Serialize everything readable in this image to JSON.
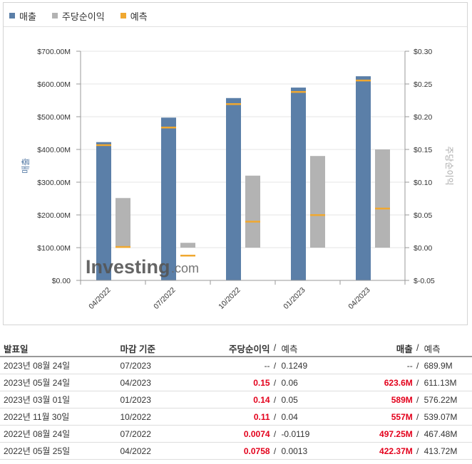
{
  "legend": [
    {
      "label": "매출",
      "color": "#5b7fa8"
    },
    {
      "label": "주당순이익",
      "color": "#b3b3b3"
    },
    {
      "label": "예측",
      "color": "#f0a830"
    }
  ],
  "watermark": {
    "brand": "Investing",
    "suffix": ".com"
  },
  "chart_data": {
    "type": "bar",
    "categories": [
      "04/2022",
      "07/2022",
      "10/2022",
      "01/2023",
      "04/2023"
    ],
    "series": [
      {
        "name": "매출",
        "axis": "left",
        "values": [
          422.37,
          497.25,
          557,
          589,
          623.6
        ],
        "forecast": [
          413.72,
          467.48,
          539.07,
          576.22,
          611.13
        ],
        "unit": "M USD"
      },
      {
        "name": "주당순이익",
        "axis": "right",
        "values": [
          0.0758,
          0.0074,
          0.11,
          0.14,
          0.15
        ],
        "forecast": [
          0.0013,
          -0.0119,
          0.04,
          0.05,
          0.06
        ]
      }
    ],
    "left_axis": {
      "label": "매출",
      "min": 0,
      "max": 700,
      "ticks": [
        "$0.00",
        "$100.00M",
        "$200.00M",
        "$300.00M",
        "$400.00M",
        "$500.00M",
        "$600.00M",
        "$700.00M"
      ]
    },
    "right_axis": {
      "label": "주당순이익",
      "min": -0.05,
      "max": 0.3,
      "ticks": [
        "$-0.05",
        "$0.00",
        "$0.05",
        "$0.10",
        "$0.15",
        "$0.20",
        "$0.25",
        "$0.30"
      ]
    },
    "legend_position": "top-left"
  },
  "table": {
    "headers": {
      "date": "발표일",
      "period": "마감 기준",
      "eps": "주당순이익",
      "eps_forecast": "예측",
      "revenue": "매출",
      "revenue_forecast": "예측",
      "sep": "/"
    },
    "rows": [
      {
        "date": "2023년 08월 24일",
        "period": "07/2023",
        "eps": "--",
        "eps_forecast": "0.1249",
        "revenue": "--",
        "revenue_forecast": "689.9M",
        "highlight": false
      },
      {
        "date": "2023년 05월 24일",
        "period": "04/2023",
        "eps": "0.15",
        "eps_forecast": "0.06",
        "revenue": "623.6M",
        "revenue_forecast": "611.13M",
        "highlight": true
      },
      {
        "date": "2023년 03월 01일",
        "period": "01/2023",
        "eps": "0.14",
        "eps_forecast": "0.05",
        "revenue": "589M",
        "revenue_forecast": "576.22M",
        "highlight": true
      },
      {
        "date": "2022년 11월 30일",
        "period": "10/2022",
        "eps": "0.11",
        "eps_forecast": "0.04",
        "revenue": "557M",
        "revenue_forecast": "539.07M",
        "highlight": true
      },
      {
        "date": "2022년 08월 24일",
        "period": "07/2022",
        "eps": "0.0074",
        "eps_forecast": "-0.0119",
        "revenue": "497.25M",
        "revenue_forecast": "467.48M",
        "highlight": true
      },
      {
        "date": "2022년 05월 25일",
        "period": "04/2022",
        "eps": "0.0758",
        "eps_forecast": "0.0013",
        "revenue": "422.37M",
        "revenue_forecast": "413.72M",
        "highlight": true
      }
    ]
  }
}
